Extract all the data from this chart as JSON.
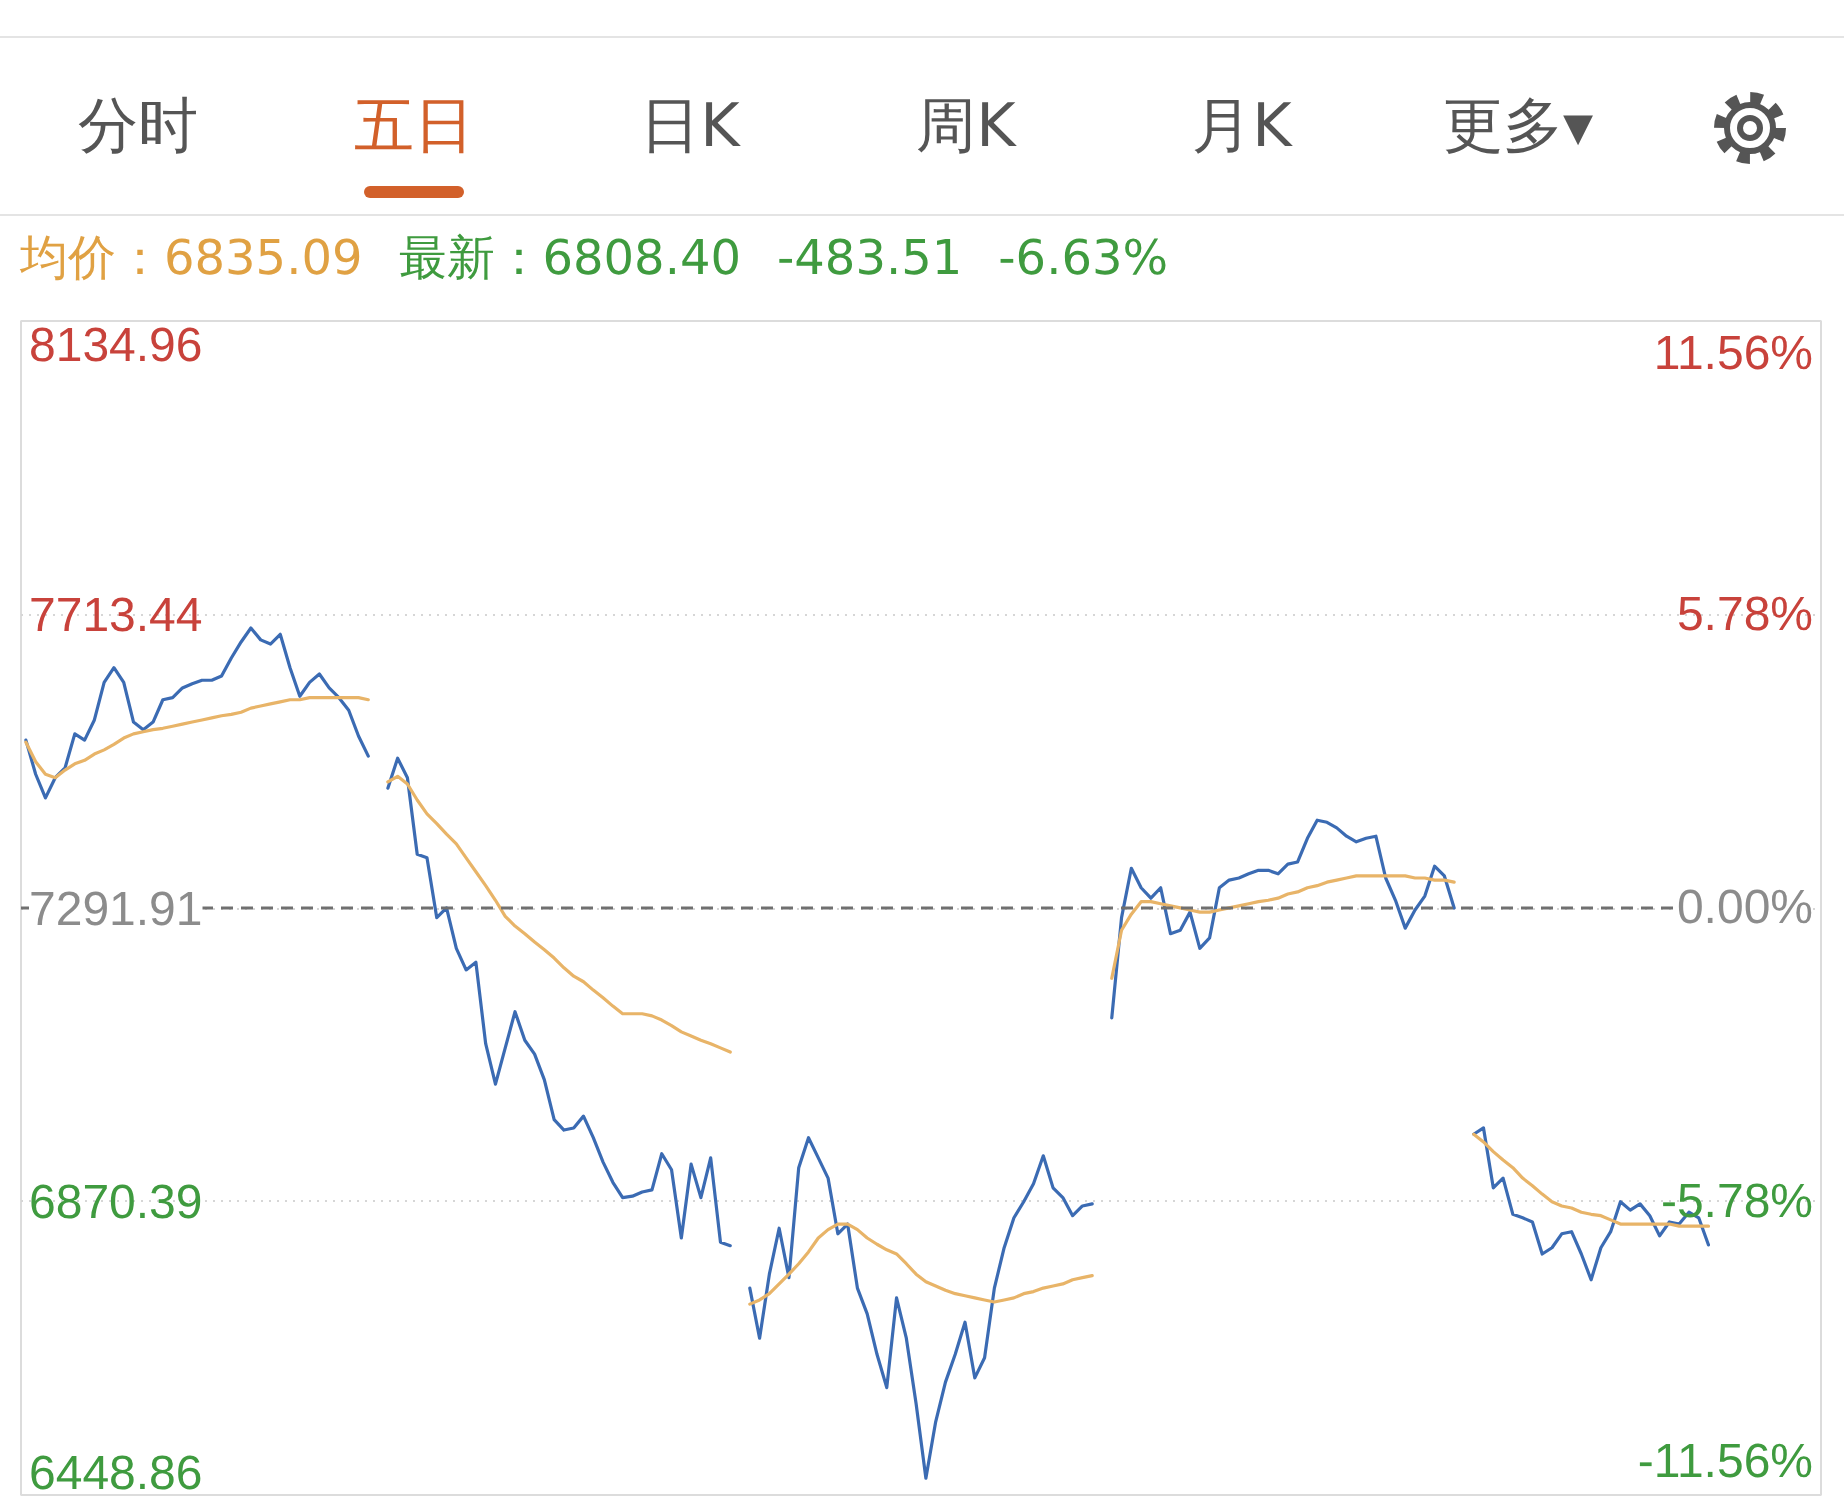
{
  "chart_data": [
    {
      "type": "other",
      "annotations": [
        "分时",
        "五日",
        "日K",
        "周K",
        "月K",
        "更多▾"
      ]
    },
    {
      "type": "other",
      "annotations": [
        "均价：6835.09",
        "最新：6808.40",
        "-483.51",
        "-6.63%"
      ]
    },
    {
      "type": "line",
      "categories": [
        null,
        null,
        null,
        null,
        null,
        null,
        null,
        null,
        null,
        null,
        null,
        null,
        null,
        null,
        null,
        null,
        null,
        null,
        null,
        null,
        null,
        null,
        null,
        null,
        null,
        null,
        null,
        null,
        null,
        null,
        null,
        null,
        null,
        null,
        null,
        null,
        null,
        null,
        null,
        null,
        null,
        null,
        null,
        null,
        null,
        null,
        null,
        null,
        null,
        null,
        null,
        null,
        null,
        null,
        null,
        null,
        null,
        null,
        null,
        null,
        null,
        null,
        null,
        null,
        null,
        null,
        null,
        null,
        null,
        null,
        null,
        null,
        null,
        null,
        null,
        null,
        null,
        null,
        null,
        null,
        null,
        null,
        null,
        null,
        null,
        null,
        null,
        null,
        null,
        null,
        null,
        null,
        null,
        null,
        null,
        null,
        null,
        null,
        null,
        null,
        null,
        null,
        null,
        null,
        null,
        null,
        null,
        null,
        null,
        null,
        null,
        null,
        null,
        null,
        null,
        null,
        null,
        null,
        null,
        null,
        null,
        null,
        null,
        null,
        null,
        null,
        null,
        null,
        null,
        null,
        null,
        null,
        null,
        null,
        null,
        null,
        null,
        null,
        null,
        null,
        null,
        null,
        null,
        null,
        null,
        null,
        null,
        null,
        null,
        null,
        null,
        null,
        null,
        null,
        null,
        null,
        null,
        null,
        null,
        null,
        null,
        null,
        null,
        null,
        null,
        null,
        null,
        null,
        null,
        null,
        null,
        null,
        null,
        null,
        null,
        null,
        null,
        null,
        null,
        null,
        null,
        null,
        null,
        null
      ],
      "series": [
        {
          "color": "#3b6bb3",
          "values": [
            7533,
            7484,
            7450,
            7479,
            7493,
            7542,
            7533,
            7562,
            7616,
            7637,
            7616,
            7559,
            7548,
            7559,
            7591,
            7594,
            7608,
            7614,
            7619,
            7619,
            7625,
            7651,
            7674,
            7694,
            7677,
            7671,
            7685,
            7637,
            7596,
            7616,
            7628,
            7608,
            7594,
            7576,
            7539,
            7510,
            null,
            7464,
            7507,
            7479,
            7369,
            7364,
            7278,
            7292,
            7234,
            7203,
            7214,
            7097,
            7039,
            7091,
            7143,
            7102,
            7082,
            7045,
            6988,
            6973,
            6976,
            6993,
            6962,
            6927,
            6898,
            6876,
            6878,
            6884,
            6887,
            6939,
            6916,
            6818,
            6924,
            6876,
            6933,
            6812,
            6807,
            null,
            6746,
            6674,
            6766,
            6832,
            6761,
            6919,
            6962,
            6933,
            6904,
            6824,
            6838,
            6746,
            6709,
            6651,
            6603,
            6732,
            6674,
            6580,
            6473,
            6554,
            6611,
            6651,
            6697,
            6617,
            6646,
            6746,
            6804,
            6847,
            6870,
            6896,
            6936,
            6890,
            6876,
            6850,
            6864,
            6867,
            null,
            7134,
            7278,
            7349,
            7321,
            7306,
            7321,
            7255,
            7260,
            7286,
            7234,
            7249,
            7321,
            7332,
            7335,
            7341,
            7346,
            7346,
            7341,
            7355,
            7358,
            7392,
            7418,
            7415,
            7407,
            7395,
            7387,
            7392,
            7395,
            7335,
            7303,
            7263,
            7289,
            7309,
            7352,
            7338,
            7292,
            null,
            6967,
            6976,
            6890,
            6904,
            6852,
            6847,
            6841,
            6795,
            6804,
            6824,
            6827,
            6795,
            6758,
            6804,
            6827,
            6870,
            6858,
            6867,
            6850,
            6821,
            6841,
            6838,
            6855,
            6847,
            6808,
            null,
            null,
            null,
            null,
            null,
            null,
            null,
            null,
            null,
            null,
            null
          ]
        },
        {
          "color": "#e8b468",
          "values": [
            7530,
            7502,
            7484,
            7479,
            7490,
            7499,
            7504,
            7513,
            7519,
            7527,
            7536,
            7542,
            7545,
            7548,
            7550,
            7553,
            7556,
            7559,
            7562,
            7565,
            7568,
            7570,
            7573,
            7579,
            7582,
            7585,
            7588,
            7591,
            7591,
            7594,
            7594,
            7594,
            7594,
            7594,
            7594,
            7591,
            null,
            7473,
            7481,
            7470,
            7447,
            7427,
            7413,
            7398,
            7384,
            7364,
            7344,
            7324,
            7303,
            7280,
            7266,
            7255,
            7243,
            7232,
            7220,
            7206,
            7194,
            7186,
            7174,
            7163,
            7151,
            7140,
            7140,
            7140,
            7137,
            7131,
            7123,
            7114,
            7108,
            7102,
            7097,
            7091,
            7085,
            null,
            6723,
            6729,
            6738,
            6752,
            6766,
            6781,
            6798,
            6818,
            6830,
            6838,
            6838,
            6830,
            6818,
            6809,
            6801,
            6795,
            6781,
            6766,
            6755,
            6749,
            6743,
            6738,
            6735,
            6732,
            6729,
            6726,
            6729,
            6732,
            6738,
            6741,
            6746,
            6749,
            6752,
            6758,
            6761,
            6764,
            null,
            7191,
            7260,
            7283,
            7301,
            7301,
            7298,
            7295,
            7292,
            7289,
            7286,
            7286,
            7289,
            7292,
            7295,
            7298,
            7301,
            7303,
            7306,
            7312,
            7315,
            7321,
            7324,
            7329,
            7332,
            7335,
            7338,
            7338,
            7338,
            7338,
            7338,
            7338,
            7335,
            7335,
            7332,
            7332,
            7329,
            null,
            6967,
            6956,
            6942,
            6930,
            6919,
            6904,
            6893,
            6881,
            6870,
            6864,
            6861,
            6855,
            6852,
            6850,
            6844,
            6838,
            6838,
            6838,
            6838,
            6838,
            6838,
            6835,
            6835,
            6835,
            6835,
            null,
            null,
            null,
            null,
            null,
            null,
            null,
            null,
            null,
            null,
            null
          ]
        }
      ],
      "ylim": [
        6448.86,
        8134.96
      ],
      "yticks": [
        8134.96,
        7713.44,
        7291.91,
        6870.39,
        6448.86
      ],
      "y2lim": [
        -11.56,
        11.56
      ],
      "y2ticks": [
        {
          "value": 11.56,
          "label": "11.56%"
        },
        {
          "value": 5.78,
          "label": "5.78%"
        },
        {
          "value": 0,
          "label": "0.00%"
        },
        {
          "value": -5.78,
          "label": "-5.78%"
        },
        {
          "value": -11.56,
          "label": "-11.56%"
        }
      ],
      "ref_lines": [
        {
          "axis": "y",
          "value": 7291.91,
          "line_style": "dashed",
          "color": "#707070"
        }
      ],
      "grid": "y"
    }
  ]
}
